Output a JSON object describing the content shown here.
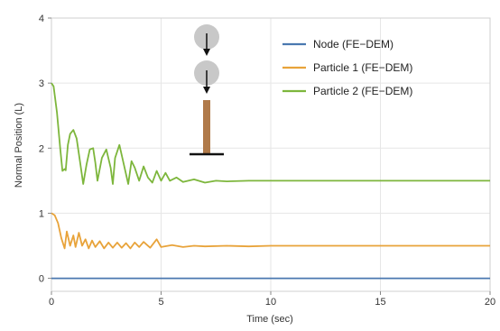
{
  "chart_data": {
    "type": "line",
    "title": "",
    "xlabel": "Time (sec)",
    "ylabel": "Normal Position (L)",
    "xlim": [
      0,
      20
    ],
    "ylim": [
      -0.2,
      4
    ],
    "xticks": [
      0,
      5,
      10,
      15,
      20
    ],
    "xtick_labels": [
      "0",
      "5",
      "10",
      "15",
      "20"
    ],
    "yticks": [
      0,
      1,
      2,
      3,
      4
    ],
    "ytick_labels": [
      "0",
      "1",
      "2",
      "3",
      "4"
    ],
    "grid": true,
    "legend_position": "top-right",
    "series": [
      {
        "name": "Node (FE−DEM)",
        "color": "#4a78b0",
        "x": [
          0,
          20
        ],
        "y": [
          0.0,
          0.0
        ]
      },
      {
        "name": "Particle 1 (FE−DEM)",
        "color": "#e8a33a",
        "x": [
          0,
          0.15,
          0.3,
          0.45,
          0.6,
          0.7,
          0.85,
          1.0,
          1.1,
          1.25,
          1.4,
          1.55,
          1.7,
          1.85,
          2.0,
          2.2,
          2.4,
          2.6,
          2.8,
          3.0,
          3.2,
          3.4,
          3.6,
          3.8,
          4.0,
          4.2,
          4.5,
          4.8,
          5.0,
          5.5,
          6.0,
          6.5,
          7.0,
          8.0,
          9.0,
          10.0,
          12.0,
          15.0,
          20.0
        ],
        "y": [
          1.0,
          0.97,
          0.85,
          0.62,
          0.46,
          0.72,
          0.5,
          0.66,
          0.48,
          0.7,
          0.5,
          0.6,
          0.46,
          0.58,
          0.48,
          0.57,
          0.46,
          0.55,
          0.47,
          0.55,
          0.47,
          0.54,
          0.46,
          0.55,
          0.48,
          0.56,
          0.47,
          0.6,
          0.48,
          0.51,
          0.48,
          0.5,
          0.49,
          0.5,
          0.49,
          0.5,
          0.5,
          0.5,
          0.5
        ]
      },
      {
        "name": "Particle 2 (FE−DEM)",
        "color": "#7db63c",
        "x": [
          0,
          0.1,
          0.25,
          0.4,
          0.5,
          0.6,
          0.65,
          0.75,
          0.85,
          1.0,
          1.15,
          1.3,
          1.45,
          1.6,
          1.75,
          1.9,
          2.0,
          2.1,
          2.3,
          2.5,
          2.7,
          2.8,
          2.9,
          3.1,
          3.3,
          3.5,
          3.65,
          3.8,
          4.0,
          4.2,
          4.4,
          4.6,
          4.8,
          5.0,
          5.2,
          5.4,
          5.7,
          6.0,
          6.5,
          7.0,
          7.5,
          8.0,
          9.0,
          10.0,
          12.0,
          15.0,
          20.0
        ],
        "y": [
          3.0,
          2.95,
          2.55,
          2.0,
          1.65,
          1.68,
          1.66,
          2.05,
          2.22,
          2.28,
          2.15,
          1.8,
          1.45,
          1.75,
          1.98,
          2.0,
          1.78,
          1.5,
          1.85,
          1.98,
          1.7,
          1.45,
          1.85,
          2.05,
          1.75,
          1.45,
          1.8,
          1.7,
          1.5,
          1.72,
          1.55,
          1.47,
          1.65,
          1.5,
          1.62,
          1.5,
          1.55,
          1.48,
          1.52,
          1.47,
          1.5,
          1.49,
          1.5,
          1.5,
          1.5,
          1.5,
          1.5
        ]
      }
    ]
  },
  "inset": {
    "colors": {
      "ball": "#c8c8c8",
      "rod": "#b07a4a",
      "base": "#111111",
      "arrow": "#111111"
    }
  },
  "colors": {
    "grid": "#e6e6e6",
    "axis": "#888888",
    "frame": "#cfcfcf"
  }
}
